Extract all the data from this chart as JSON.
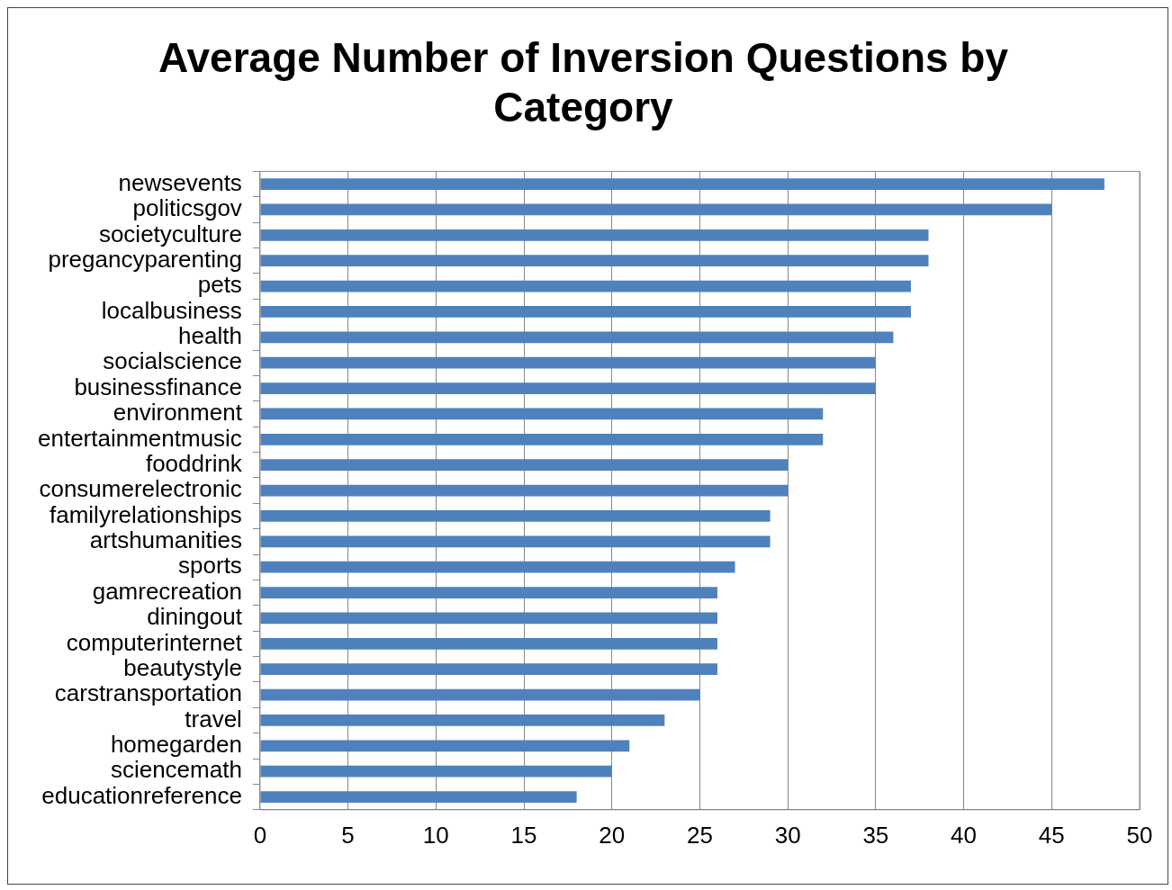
{
  "chart_data": {
    "type": "bar",
    "orientation": "horizontal",
    "title": "Average Number of Inversion Questions by Category",
    "categories": [
      "newsevents",
      "politicsgov",
      "societyculture",
      "pregancyparenting",
      "pets",
      "localbusiness",
      "health",
      "socialscience",
      "businessfinance",
      "environment",
      "entertainmentmusic",
      "fooddrink",
      "consumerelectronic",
      "familyrelationships",
      "artshumanities",
      "sports",
      "gamrecreation",
      "diningout",
      "computerinternet",
      "beautystyle",
      "carstransportation",
      "travel",
      "homegarden",
      "sciencemath",
      "educationreference"
    ],
    "values": [
      48,
      45,
      38,
      38,
      37,
      37,
      36,
      35,
      35,
      32,
      32,
      30,
      30,
      29,
      29,
      27,
      26,
      26,
      26,
      26,
      25,
      23,
      21,
      20,
      18
    ],
    "color": "#4f81bd",
    "xlim": [
      0,
      50
    ],
    "xticks": [
      0,
      5,
      10,
      15,
      20,
      25,
      30,
      35,
      40,
      45,
      50
    ],
    "grid": "x",
    "legend": false
  }
}
